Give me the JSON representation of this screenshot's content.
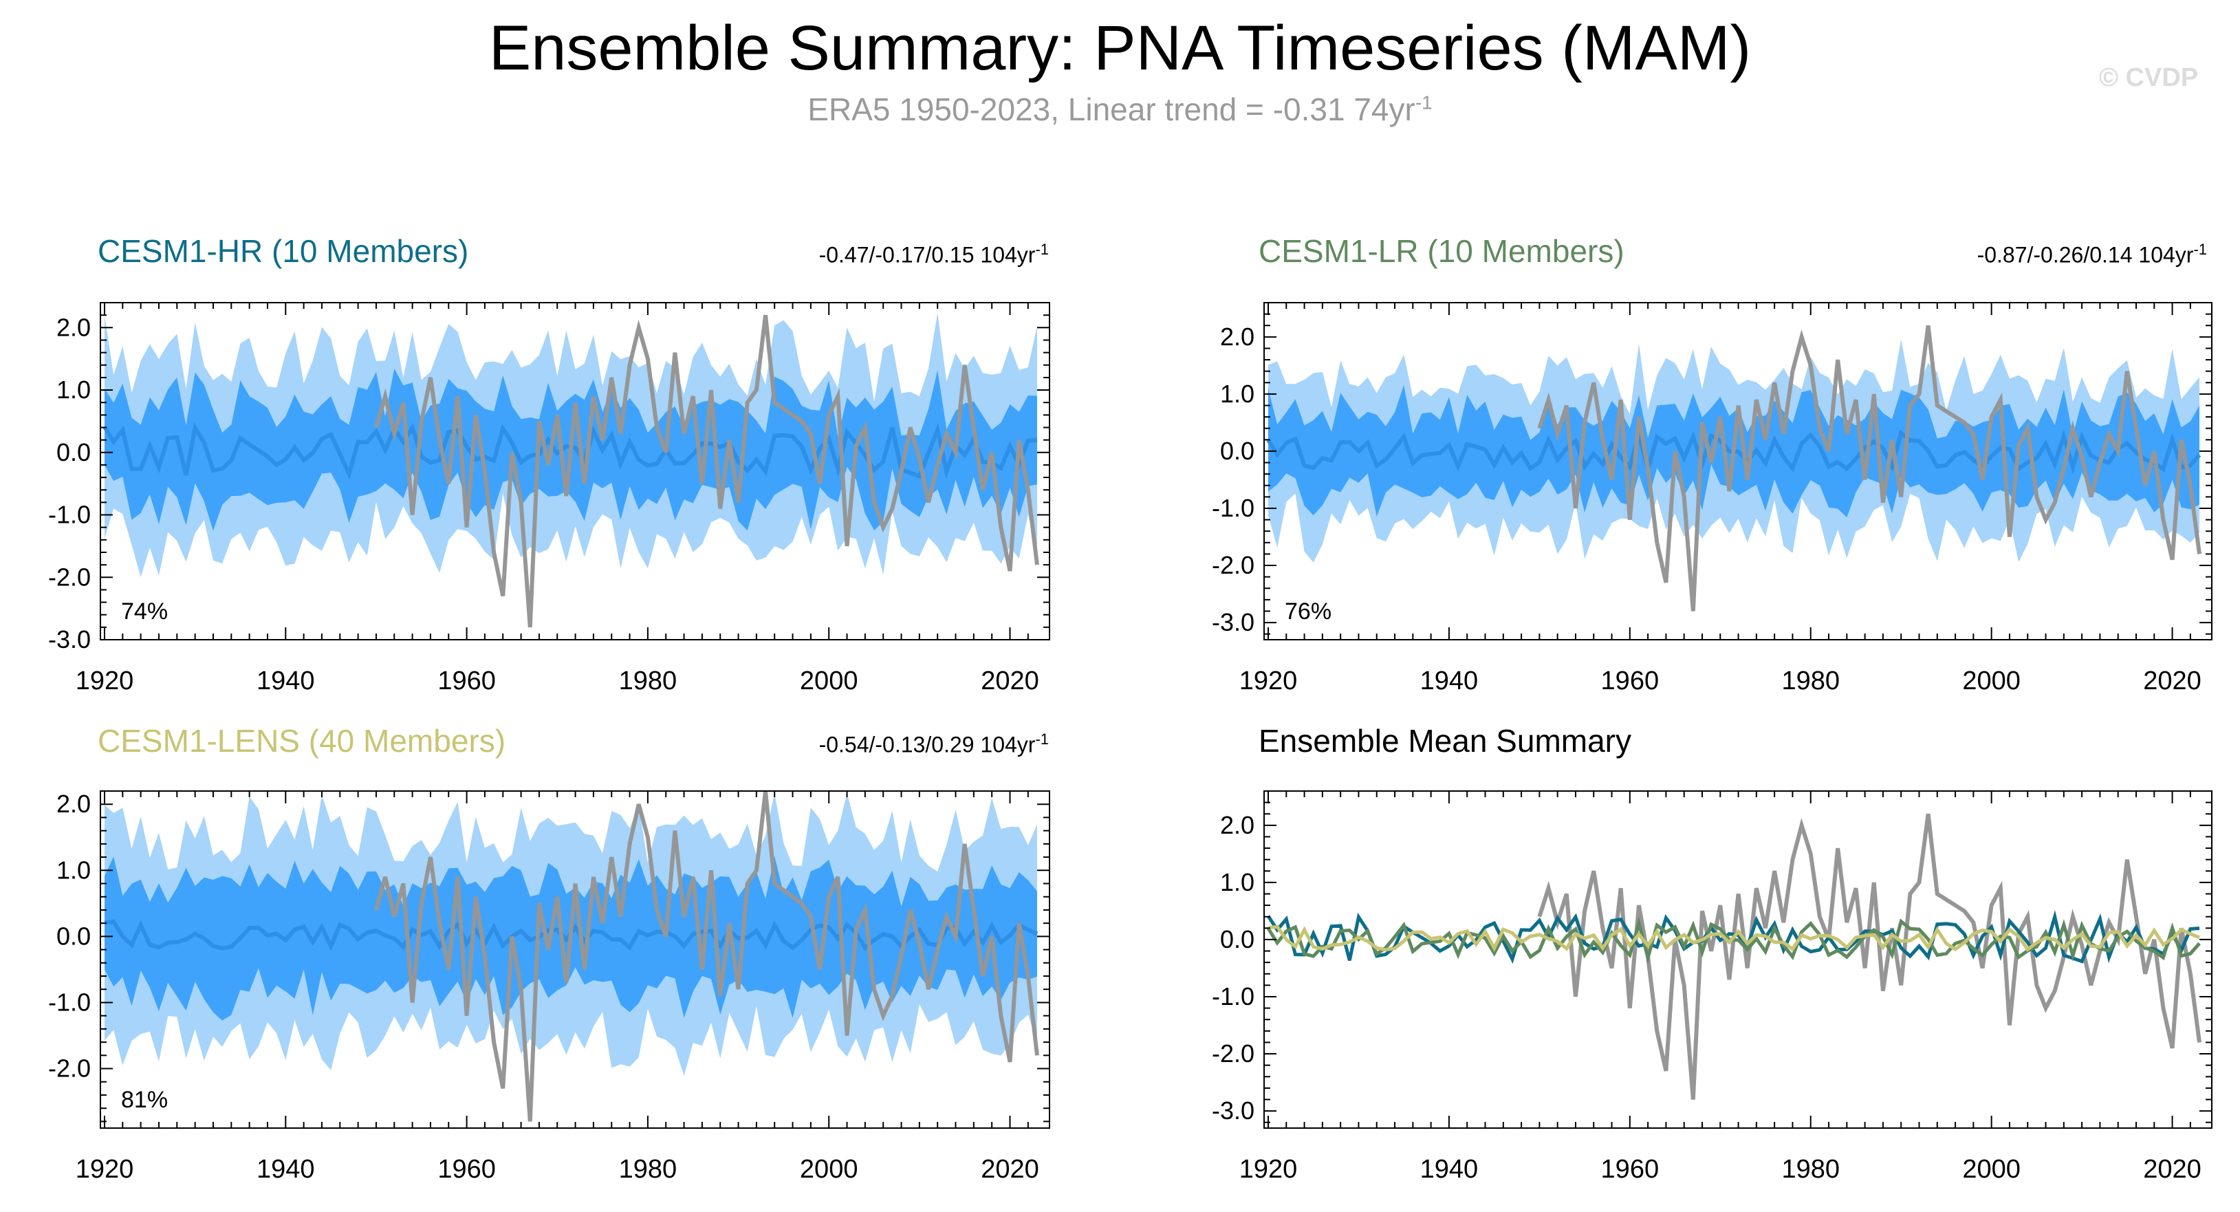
{
  "header": {
    "title": "Ensemble Summary: PNA Timeseries (MAM)",
    "subtitle": "ERA5 1950-2023, Linear trend = -0.31 74yr",
    "subtitle_exp": "-1",
    "credit": "© CVDP"
  },
  "colors": {
    "obs": "#969696",
    "band_outer": "#a6d4fb",
    "band_inner": "#3fa3fb",
    "ens_mean": "#2d8fe6",
    "hr": "#0d6e8a",
    "lr": "#5f8a5e",
    "lens": "#c8c472"
  },
  "chart_data": [
    {
      "type": "area",
      "id": "hr",
      "title": "CESM1-HR (10 Members)",
      "stat": "-0.47/-0.17/0.15 104yr",
      "stat_exp": "-1",
      "corner_label": "74%",
      "x_range": [
        1920,
        2023
      ],
      "ylim": [
        -3.0,
        2.4
      ],
      "yticks": [
        -3.0,
        -2.0,
        -1.0,
        0.0,
        1.0,
        2.0
      ],
      "xticks": [
        1920,
        1940,
        1960,
        1980,
        2000,
        2020
      ],
      "seed": 11,
      "mean_amp": 0.25,
      "inner_amp": 0.75,
      "outer_amp": 1.45
    },
    {
      "type": "area",
      "id": "lr",
      "title": "CESM1-LR (10 Members)",
      "stat": "-0.87/-0.26/0.14 104yr",
      "stat_exp": "-1",
      "corner_label": "76%",
      "x_range": [
        1920,
        2023
      ],
      "ylim": [
        -3.3,
        2.6
      ],
      "yticks": [
        -3.0,
        -2.0,
        -1.0,
        0.0,
        1.0,
        2.0
      ],
      "xticks": [
        1920,
        1940,
        1960,
        1980,
        2000,
        2020
      ],
      "seed": 23,
      "mean_amp": 0.2,
      "inner_amp": 0.7,
      "outer_amp": 1.3
    },
    {
      "type": "area",
      "id": "lens",
      "title": "CESM1-LENS (40 Members)",
      "stat": "-0.54/-0.13/0.29 104yr",
      "stat_exp": "-1",
      "corner_label": "81%",
      "x_range": [
        1920,
        2023
      ],
      "ylim": [
        -2.9,
        2.2
      ],
      "yticks": [
        -2.0,
        -1.0,
        0.0,
        1.0,
        2.0
      ],
      "xticks": [
        1920,
        1940,
        1960,
        1980,
        2000,
        2020
      ],
      "seed": 37,
      "mean_amp": 0.12,
      "inner_amp": 0.85,
      "outer_amp": 1.55
    },
    {
      "type": "line",
      "id": "summary",
      "title": "Ensemble Mean Summary",
      "x_range": [
        1920,
        2023
      ],
      "ylim": [
        -3.3,
        2.6
      ],
      "yticks": [
        -3.0,
        -2.0,
        -1.0,
        0.0,
        1.0,
        2.0
      ],
      "xticks": [
        1920,
        1940,
        1960,
        1980,
        2000,
        2020
      ],
      "series": [
        {
          "name": "CESM1-HR",
          "color_key": "hr",
          "seed": 11,
          "amp": 0.25
        },
        {
          "name": "CESM1-LR",
          "color_key": "lr",
          "seed": 23,
          "amp": 0.2
        },
        {
          "name": "CESM1-LENS",
          "color_key": "lens",
          "seed": 37,
          "amp": 0.12
        }
      ]
    }
  ],
  "obs_series": {
    "name": "ERA5",
    "start_year": 1950,
    "values": [
      0.4,
      0.9,
      0.3,
      0.8,
      -1.0,
      0.5,
      1.2,
      0.2,
      -0.5,
      0.9,
      -1.2,
      0.6,
      -0.3,
      -1.6,
      -2.3,
      0.0,
      -0.8,
      -2.8,
      0.5,
      -0.2,
      0.6,
      -0.7,
      0.8,
      -0.5,
      0.9,
      0.2,
      1.2,
      0.3,
      1.4,
      2.0,
      1.5,
      0.4,
      0.0,
      1.6,
      0.3,
      0.9,
      -0.5,
      1.0,
      -0.9,
      0.2,
      -0.8,
      0.8,
      1.0,
      2.2,
      0.8,
      0.7,
      0.6,
      0.5,
      0.3,
      -0.5,
      0.6,
      0.9,
      -1.5,
      0.1,
      0.4,
      -0.8,
      -1.2,
      -0.9,
      -0.3,
      0.4,
      -0.1,
      -0.8,
      -0.2,
      0.3,
      0.0,
      1.4,
      0.4,
      -0.6,
      0.0,
      -1.2,
      -1.9,
      0.2,
      -0.6,
      -1.8
    ]
  }
}
